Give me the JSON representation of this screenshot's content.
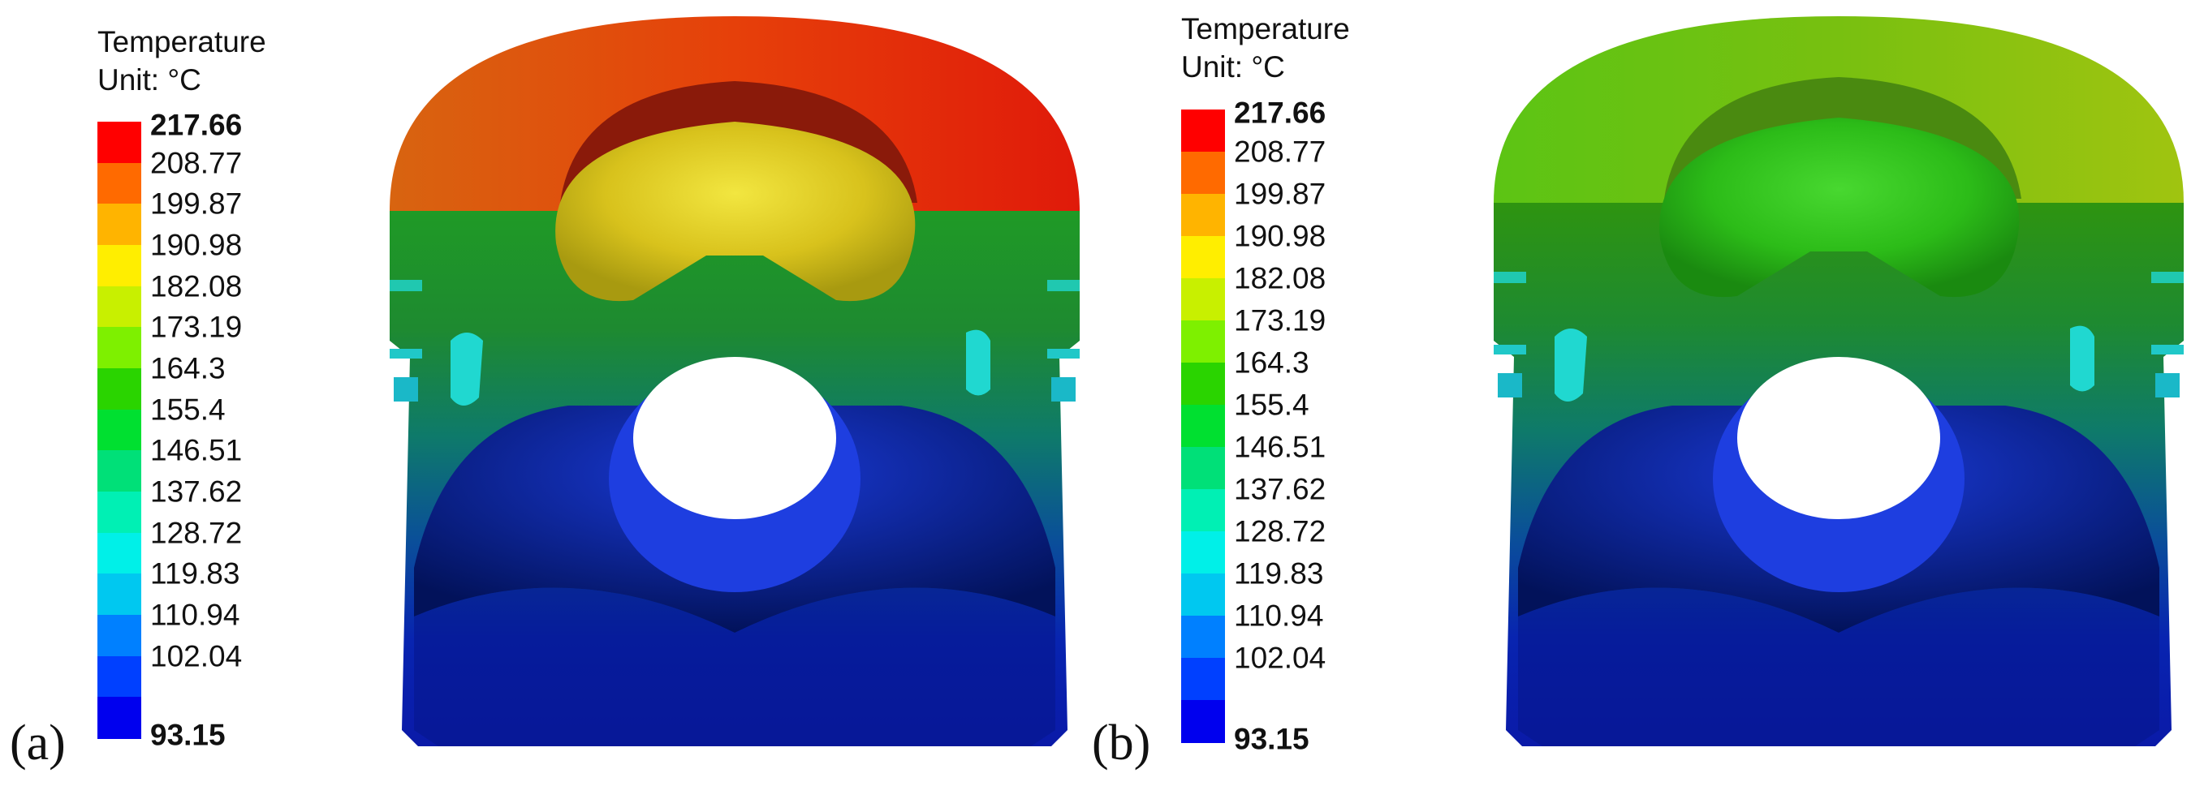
{
  "legend": {
    "title_line1": "Temperature",
    "title_line2": "Unit: °C",
    "ticks": [
      "217.66",
      "208.77",
      "199.87",
      "190.98",
      "182.08",
      "173.19",
      "164.3",
      "155.4",
      "146.51",
      "137.62",
      "128.72",
      "119.83",
      "110.94",
      "102.04",
      "93.15"
    ],
    "colors": [
      "#ff0000",
      "#ff6a00",
      "#ffb400",
      "#ffee00",
      "#c8f000",
      "#7ef000",
      "#2ad400",
      "#00e030",
      "#00e078",
      "#00f0b4",
      "#00f0e8",
      "#00c8f0",
      "#0080ff",
      "#0040ff",
      "#0000ee"
    ]
  },
  "panels": [
    {
      "label": "(a)"
    },
    {
      "label": "(b)"
    }
  ]
}
